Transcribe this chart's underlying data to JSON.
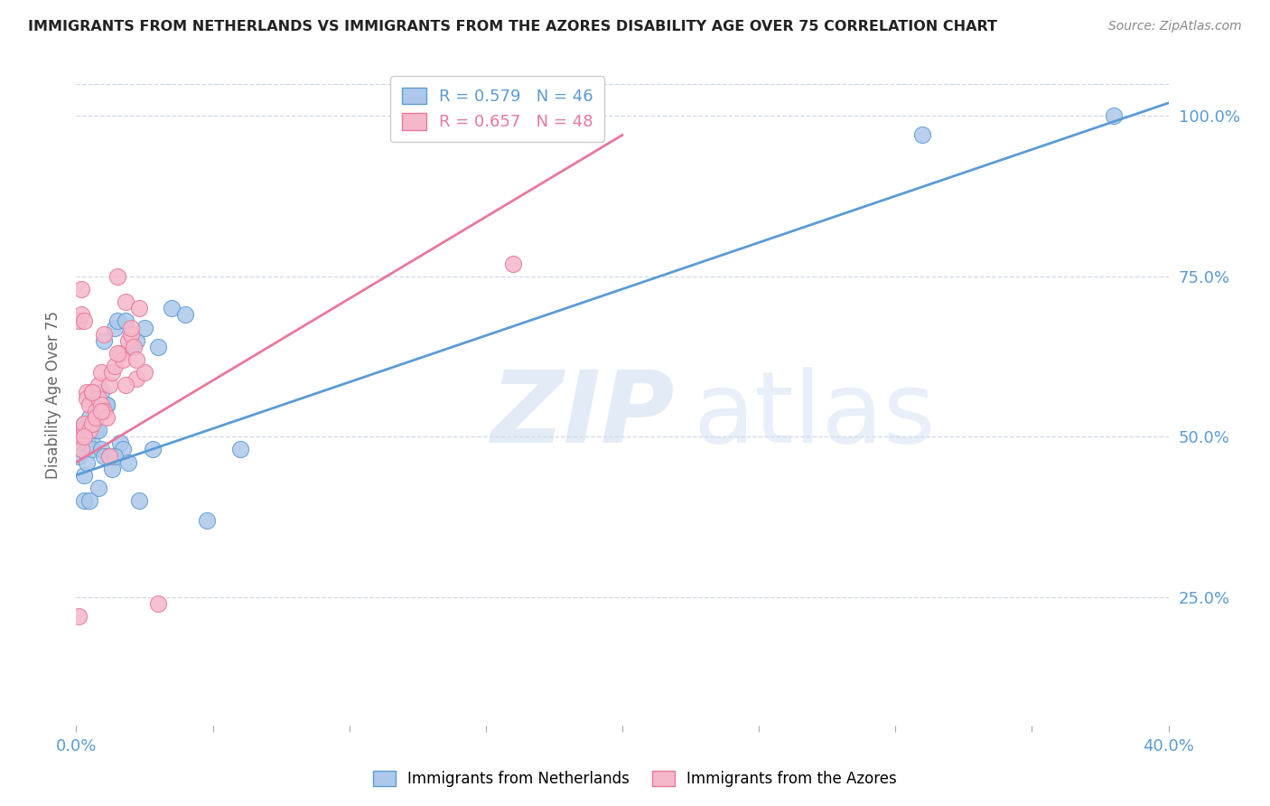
{
  "title": "IMMIGRANTS FROM NETHERLANDS VS IMMIGRANTS FROM THE AZORES DISABILITY AGE OVER 75 CORRELATION CHART",
  "source": "Source: ZipAtlas.com",
  "ylabel": "Disability Age Over 75",
  "legend_label_blue": "Immigrants from Netherlands",
  "legend_label_pink": "Immigrants from the Azores",
  "R_blue": 0.579,
  "N_blue": 46,
  "R_pink": 0.657,
  "N_pink": 48,
  "xlim": [
    0.0,
    0.4
  ],
  "ylim": [
    0.05,
    1.08
  ],
  "yticks": [
    0.25,
    0.5,
    0.75,
    1.0
  ],
  "ytick_labels": [
    "25.0%",
    "50.0%",
    "75.0%",
    "100.0%"
  ],
  "xticks": [
    0.0,
    0.05,
    0.1,
    0.15,
    0.2,
    0.25,
    0.3,
    0.35,
    0.4
  ],
  "xtick_labels": [
    "0.0%",
    "",
    "",
    "",
    "",
    "",
    "",
    "",
    "40.0%"
  ],
  "blue_fill": "#adc8ea",
  "pink_fill": "#f5b8cb",
  "blue_edge": "#5b9bd5",
  "pink_edge": "#e8789a",
  "blue_line": "#5b9bd5",
  "pink_line": "#e8789a",
  "axis_color": "#5b9bd5",
  "grid_color": "#d0d8e8",
  "netherlands_x": [
    0.001,
    0.002,
    0.002,
    0.003,
    0.003,
    0.003,
    0.004,
    0.004,
    0.005,
    0.005,
    0.006,
    0.006,
    0.007,
    0.007,
    0.008,
    0.008,
    0.009,
    0.009,
    0.01,
    0.01,
    0.011,
    0.012,
    0.013,
    0.014,
    0.015,
    0.016,
    0.017,
    0.018,
    0.02,
    0.022,
    0.025,
    0.028,
    0.03,
    0.035,
    0.04,
    0.048,
    0.06,
    0.003,
    0.014,
    0.019,
    0.023,
    0.005,
    0.011,
    0.02,
    0.31,
    0.38
  ],
  "netherlands_y": [
    0.47,
    0.48,
    0.51,
    0.5,
    0.44,
    0.52,
    0.46,
    0.49,
    0.52,
    0.53,
    0.49,
    0.48,
    0.53,
    0.51,
    0.51,
    0.42,
    0.48,
    0.57,
    0.65,
    0.47,
    0.55,
    0.47,
    0.45,
    0.67,
    0.68,
    0.49,
    0.48,
    0.68,
    0.64,
    0.65,
    0.67,
    0.48,
    0.64,
    0.7,
    0.69,
    0.37,
    0.48,
    0.4,
    0.47,
    0.46,
    0.4,
    0.4,
    0.55,
    0.64,
    0.97,
    1.0
  ],
  "azores_x": [
    0.001,
    0.001,
    0.002,
    0.002,
    0.002,
    0.003,
    0.003,
    0.003,
    0.004,
    0.004,
    0.005,
    0.005,
    0.006,
    0.006,
    0.007,
    0.007,
    0.008,
    0.008,
    0.009,
    0.009,
    0.01,
    0.01,
    0.011,
    0.012,
    0.013,
    0.014,
    0.015,
    0.016,
    0.017,
    0.018,
    0.019,
    0.02,
    0.021,
    0.022,
    0.023,
    0.025,
    0.03,
    0.002,
    0.003,
    0.006,
    0.009,
    0.012,
    0.015,
    0.018,
    0.02,
    0.022,
    0.16,
    0.001
  ],
  "azores_y": [
    0.5,
    0.68,
    0.69,
    0.5,
    0.73,
    0.51,
    0.52,
    0.68,
    0.57,
    0.56,
    0.51,
    0.55,
    0.52,
    0.57,
    0.54,
    0.53,
    0.58,
    0.56,
    0.6,
    0.55,
    0.54,
    0.66,
    0.53,
    0.58,
    0.6,
    0.61,
    0.75,
    0.63,
    0.62,
    0.71,
    0.65,
    0.66,
    0.64,
    0.59,
    0.7,
    0.6,
    0.24,
    0.48,
    0.5,
    0.57,
    0.54,
    0.47,
    0.63,
    0.58,
    0.67,
    0.62,
    0.77,
    0.22
  ],
  "blue_trendline_x": [
    0.0,
    0.4
  ],
  "blue_trendline_y": [
    0.44,
    1.02
  ],
  "pink_trendline_x": [
    0.0,
    0.2
  ],
  "pink_trendline_y": [
    0.46,
    0.97
  ]
}
